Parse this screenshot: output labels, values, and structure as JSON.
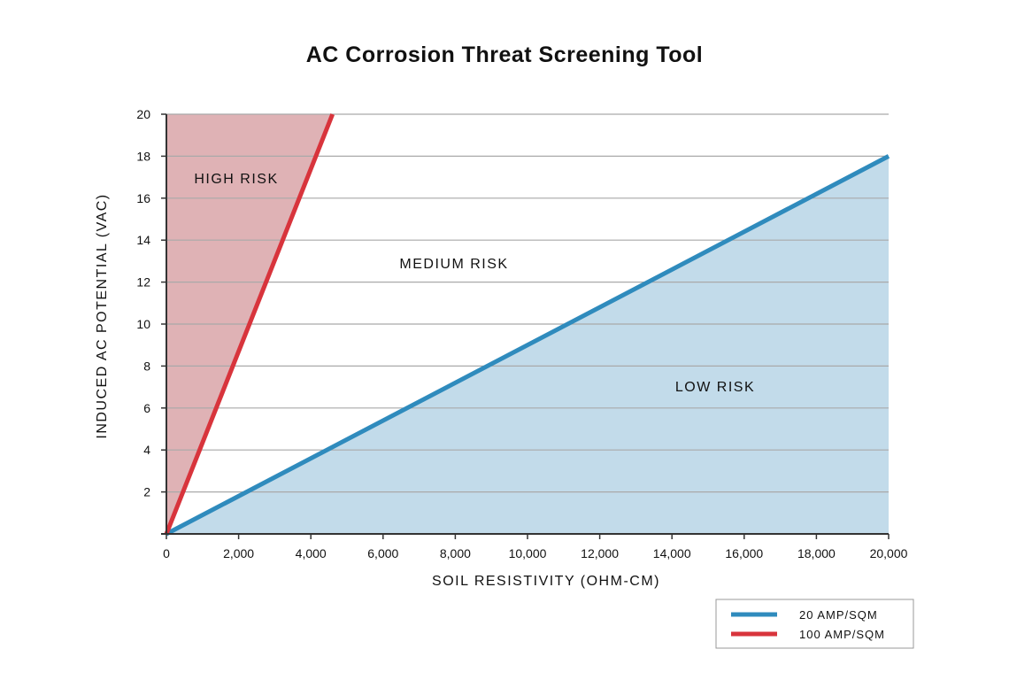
{
  "chart_data": {
    "type": "line",
    "title": "AC Corrosion Threat Screening Tool",
    "xlabel": "SOIL RESISTIVITY (OHM-CM)",
    "ylabel": "INDUCED AC POTENTIAL (VAC)",
    "xlim": [
      0,
      20000
    ],
    "ylim": [
      0,
      20
    ],
    "x_ticks": [
      "0",
      "2,000",
      "4,000",
      "6,000",
      "8,000",
      "10,000",
      "12,000",
      "14,000",
      "16,000",
      "18,000",
      "20,000"
    ],
    "x_tick_values": [
      0,
      2000,
      4000,
      6000,
      8000,
      10000,
      12000,
      14000,
      16000,
      18000,
      20000
    ],
    "y_ticks": [
      "2",
      "4",
      "6",
      "8",
      "10",
      "12",
      "14",
      "16",
      "18",
      "20"
    ],
    "y_tick_values": [
      2,
      4,
      6,
      8,
      10,
      12,
      14,
      16,
      18,
      20
    ],
    "grid": "horizontal",
    "legend_position": "bottom-right",
    "series": [
      {
        "name": "20 AMP/SQM",
        "color": "#2f8bbd",
        "x": [
          0,
          20000
        ],
        "y": [
          0,
          18
        ]
      },
      {
        "name": "100 AMP/SQM",
        "color": "#d8343c",
        "x": [
          0,
          4600
        ],
        "y": [
          0,
          20
        ]
      }
    ],
    "regions": [
      {
        "label": "HIGH RISK",
        "fill": "#dfb2b5"
      },
      {
        "label": "MEDIUM RISK",
        "fill": "#ffffff"
      },
      {
        "label": "LOW RISK",
        "fill": "#c2dbea"
      }
    ]
  }
}
